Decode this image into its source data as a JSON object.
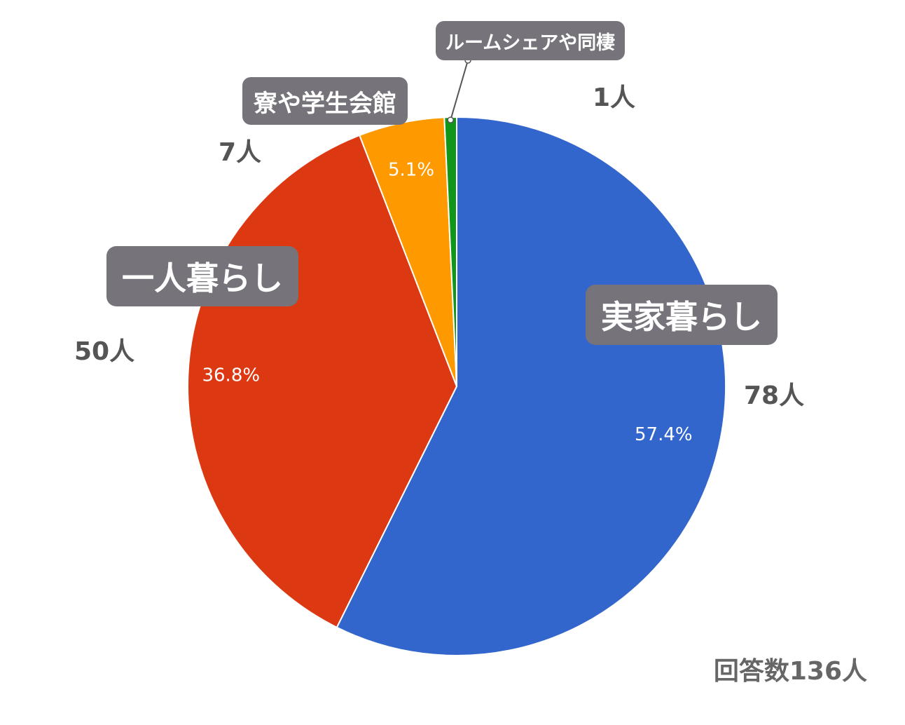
{
  "chart_data": {
    "type": "pie",
    "categories": [
      "実家暮らし",
      "一人暮らし",
      "寮や学生会館",
      "ルームシェアや同棲"
    ],
    "values": [
      78,
      50,
      7,
      1
    ],
    "counts_text": [
      "78人",
      "50人",
      "7人",
      "1人"
    ],
    "percent_labels": [
      "57.4%",
      "36.8%",
      "5.1%",
      ""
    ],
    "colors": [
      "#3366cc",
      "#dc3912",
      "#ff9900",
      "#109618"
    ],
    "start_angle_deg": 0,
    "direction": "clockwise",
    "total_text": "回答数136人"
  }
}
